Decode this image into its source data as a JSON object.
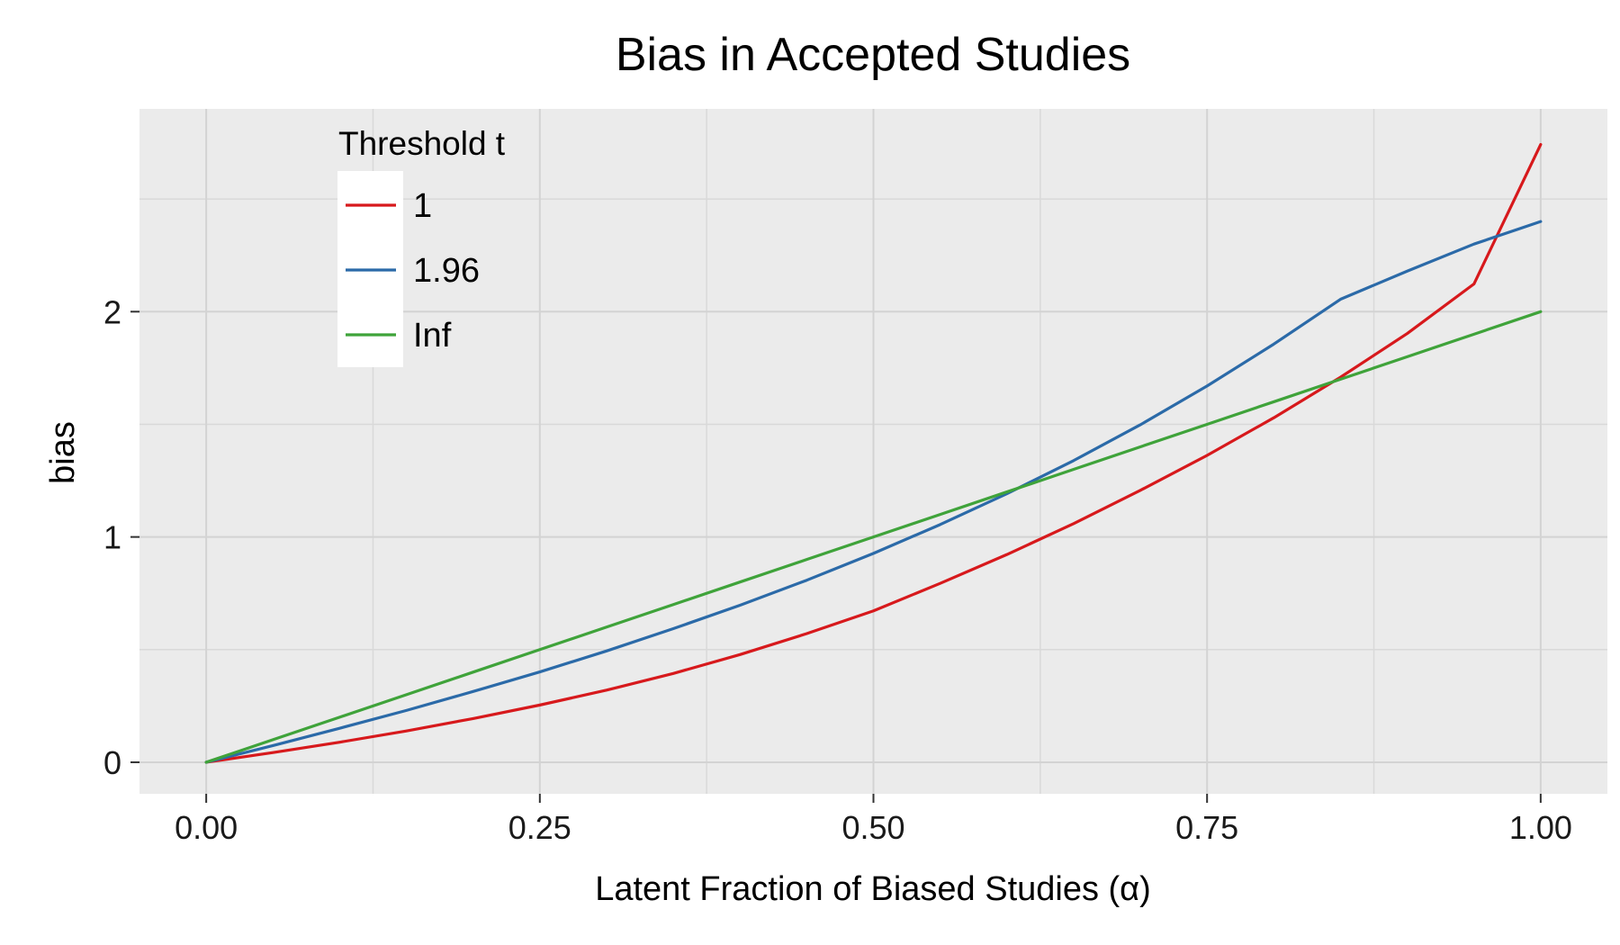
{
  "chart_data": {
    "type": "line",
    "title": "Bias in Accepted Studies",
    "xlabel": "Latent Fraction of Biased Studies (α)",
    "ylabel": "bias",
    "xlim": [
      -0.05,
      1.05
    ],
    "ylim": [
      -0.14,
      2.9
    ],
    "x_ticks": [
      0.0,
      0.25,
      0.5,
      0.75,
      1.0
    ],
    "x_tick_labels": [
      "0.00",
      "0.25",
      "0.50",
      "0.75",
      "1.00"
    ],
    "x_minor_ticks": [
      0.125,
      0.375,
      0.625,
      0.875
    ],
    "y_ticks": [
      0,
      1,
      2
    ],
    "y_tick_labels": [
      "0",
      "1",
      "2"
    ],
    "y_minor_ticks": [
      0.5,
      1.5,
      2.5
    ],
    "grid": true,
    "legend": {
      "title": "Threshold t",
      "placement": "top-left inside"
    },
    "x": [
      0.0,
      0.05,
      0.1,
      0.15,
      0.2,
      0.25,
      0.3,
      0.35,
      0.4,
      0.45,
      0.5,
      0.55,
      0.6,
      0.65,
      0.7,
      0.75,
      0.8,
      0.85,
      0.9,
      0.95,
      1.0
    ],
    "series": [
      {
        "name": "1",
        "color": "#d7191c",
        "values": [
          0.0,
          0.043,
          0.089,
          0.139,
          0.194,
          0.254,
          0.32,
          0.394,
          0.478,
          0.571,
          0.672,
          0.794,
          0.922,
          1.059,
          1.207,
          1.362,
          1.529,
          1.709,
          1.903,
          2.123,
          2.742
        ]
      },
      {
        "name": "1.96",
        "color": "#2b6aa8",
        "values": [
          0.0,
          0.074,
          0.151,
          0.23,
          0.314,
          0.401,
          0.494,
          0.593,
          0.697,
          0.808,
          0.927,
          1.055,
          1.192,
          1.339,
          1.498,
          1.67,
          1.856,
          2.055,
          2.18,
          2.3,
          2.4
        ]
      },
      {
        "name": "Inf",
        "color": "#3fa33a",
        "values": [
          0.0,
          0.1,
          0.2,
          0.3,
          0.4,
          0.5,
          0.6,
          0.7,
          0.8,
          0.9,
          1.0,
          1.1,
          1.2,
          1.3,
          1.4,
          1.5,
          1.6,
          1.7,
          1.8,
          1.9,
          2.0
        ]
      }
    ]
  }
}
